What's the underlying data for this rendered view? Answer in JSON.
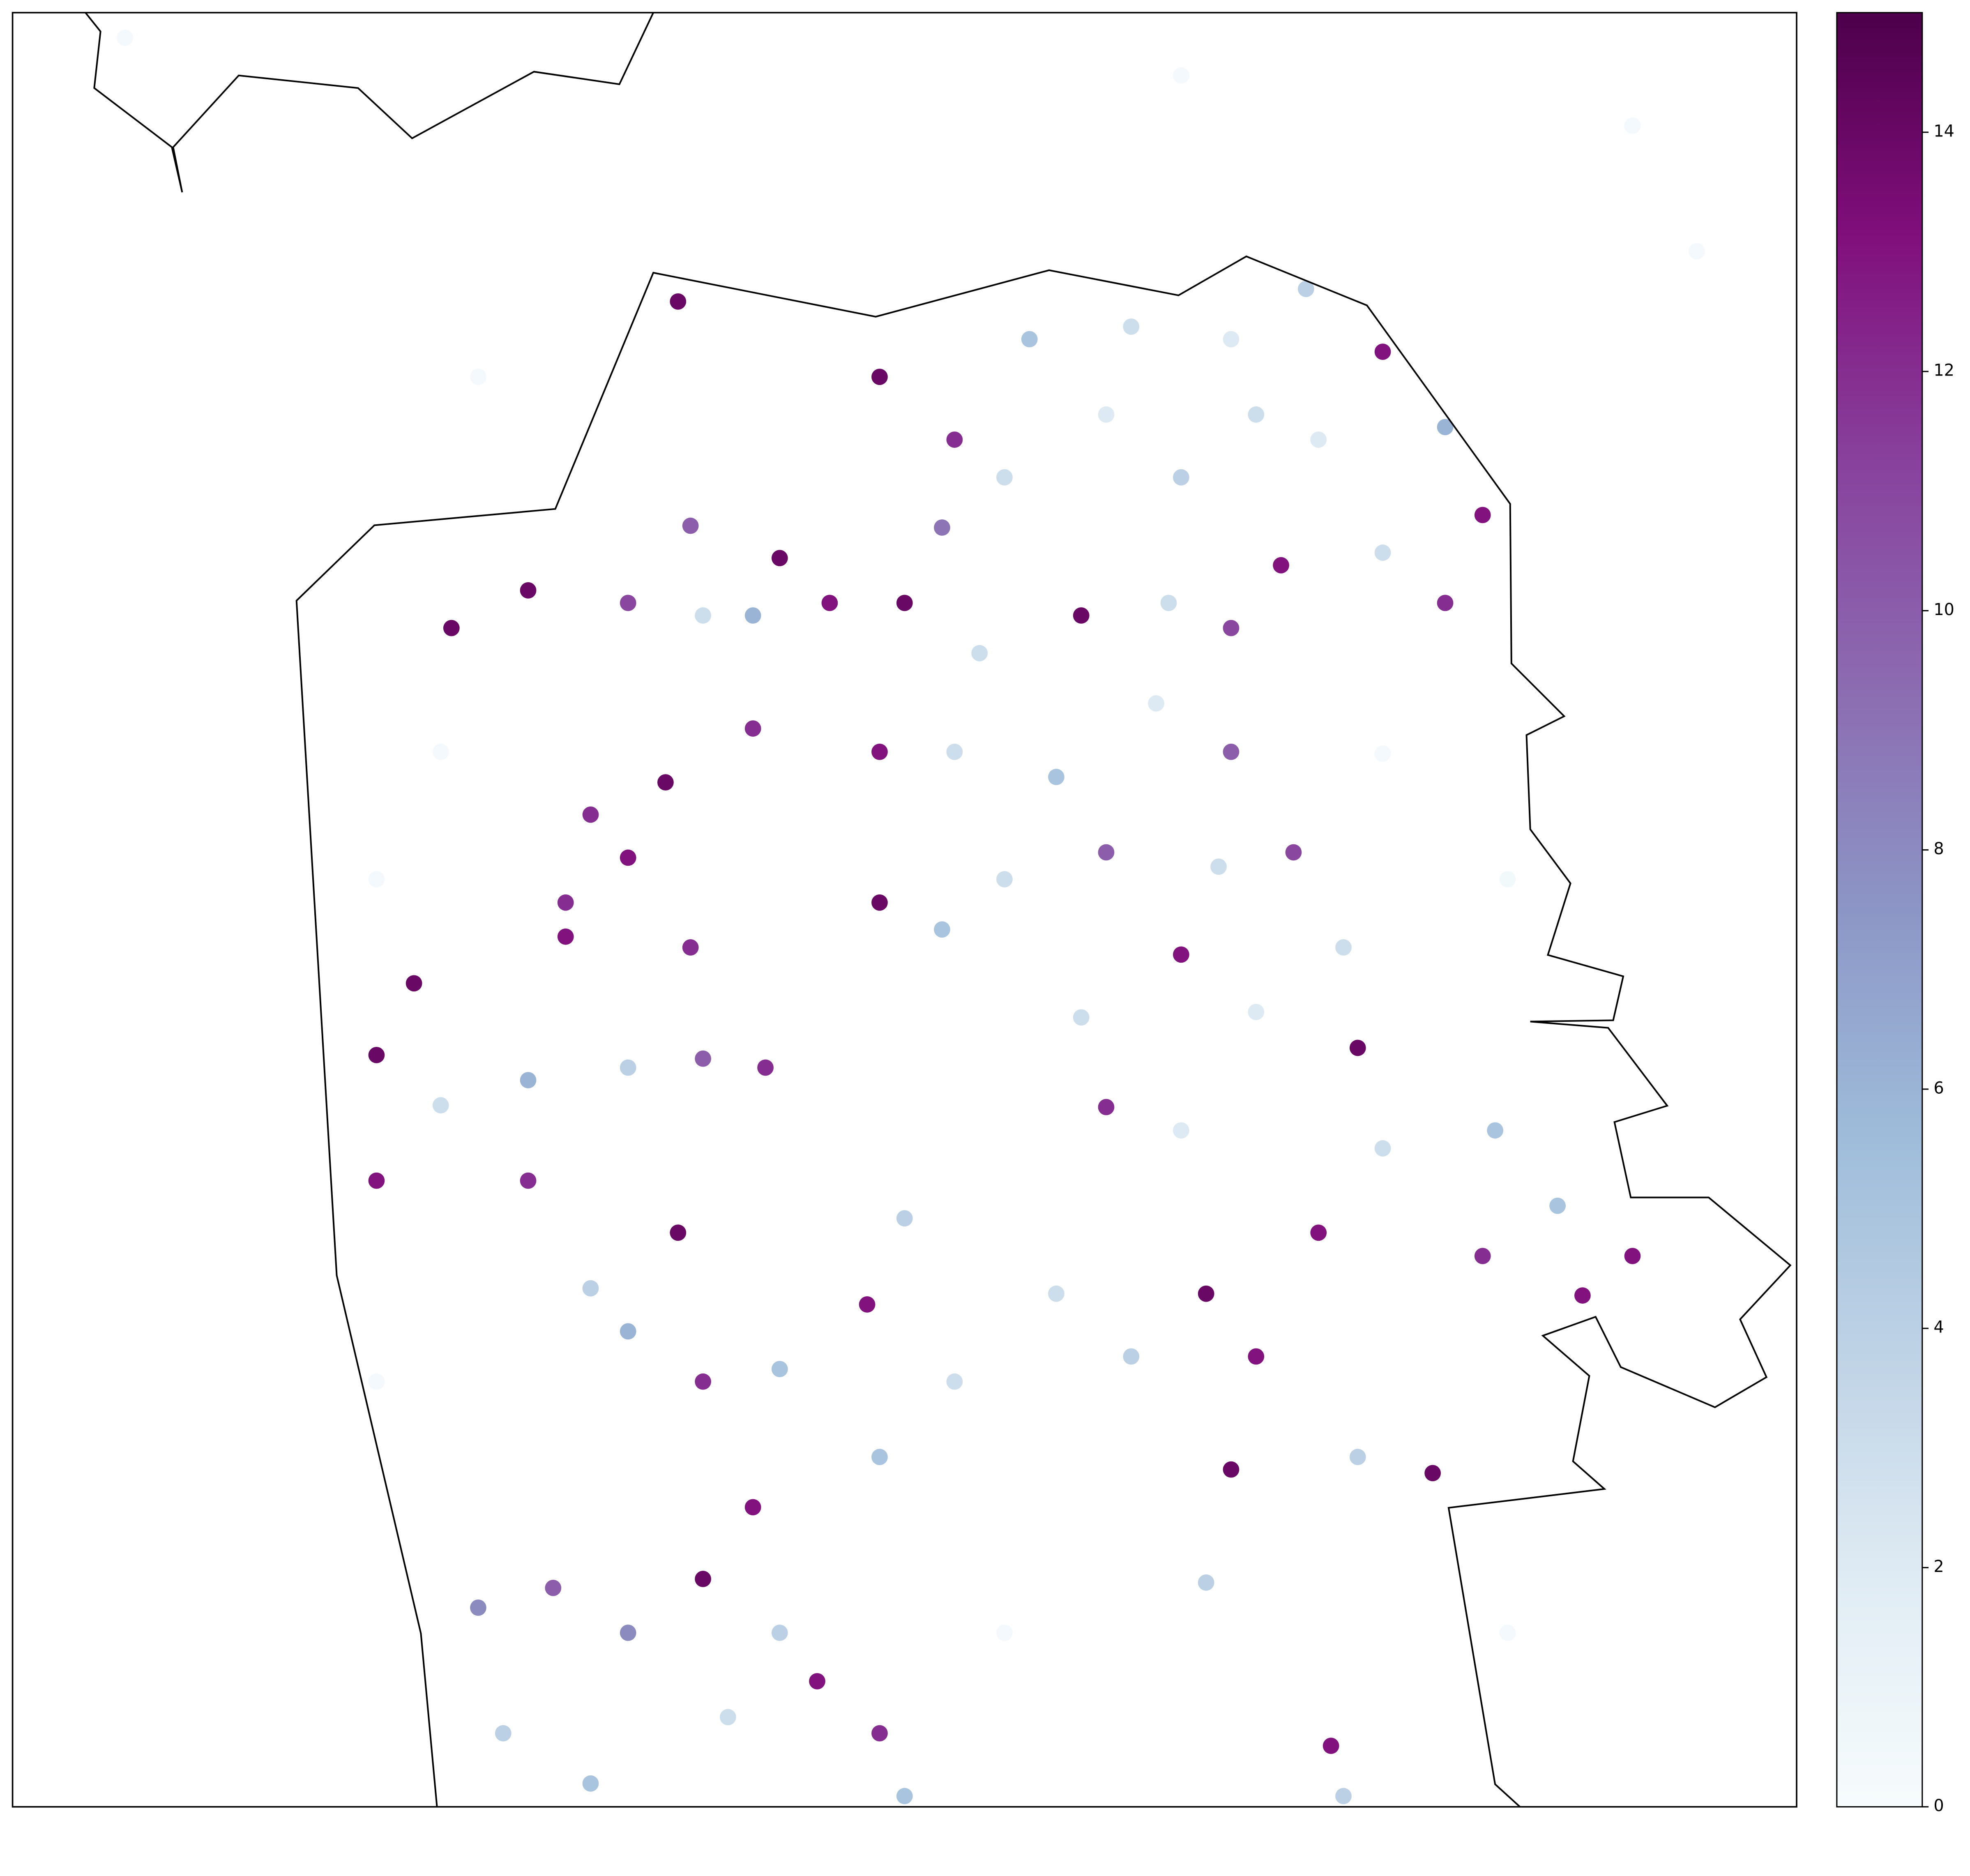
{
  "chart_data": {
    "type": "scatter",
    "xlim": [
      0,
      100
    ],
    "ylim": [
      0,
      100
    ],
    "x": [
      48.6,
      52.8,
      57.0,
      62.7,
      68.3,
      72.5,
      76.8,
      80.3,
      82.4,
      80.3,
      76.8,
      73.2,
      69.7,
      65.5,
      61.3,
      55.6,
      52.1,
      50.0,
      54.2,
      59.9,
      64.8,
      68.3,
      71.1,
      64.1,
      68.3,
      48.6,
      52.8,
      58.5,
      55.6,
      52.1,
      48.6,
      61.3,
      67.6,
      71.8,
      74.6,
      69.7,
      65.5,
      59.9,
      75.4,
      65.5,
      61.3,
      83.1,
      76.8,
      73.2,
      82.4,
      86.6,
      90.8,
      88.0,
      58.5,
      62.7,
      66.9,
      69.7,
      75.4,
      79.6,
      68.3,
      66.9,
      50.0,
      47.9,
      52.8,
      48.6,
      43.0,
      38.7,
      34.5,
      32.4,
      37.3,
      41.5,
      38.7,
      43.0,
      40.1,
      34.5,
      30.3,
      26.1,
      27.5,
      32.4,
      48.6,
      50.0,
      45.1,
      20.4,
      24.0,
      28.9,
      34.5,
      38.7,
      20.4,
      28.9,
      22.5,
      31.0,
      34.5,
      32.4,
      36.6,
      31.0,
      38.0,
      42.2,
      28.9,
      34.5,
      38.7,
      41.5,
      43.0,
      38.0,
      41.5,
      45.8,
      24.6,
      37.3,
      73.9,
      74.6,
      24.0,
      20.4,
      55.6,
      83.8,
      90.8,
      94.4,
      65.5,
      76.8,
      20.4,
      83.8,
      26.1,
      6.3
    ],
    "y": [
      79.7,
      76.2,
      81.8,
      82.5,
      81.8,
      84.6,
      81.1,
      76.9,
      72.0,
      67.1,
      69.9,
      76.2,
      77.6,
      74.1,
      77.6,
      74.1,
      71.3,
      67.1,
      64.3,
      66.4,
      67.1,
      65.7,
      69.2,
      61.5,
      58.8,
      58.8,
      58.8,
      57.4,
      51.7,
      48.9,
      50.4,
      53.2,
      52.4,
      53.2,
      47.9,
      44.3,
      47.5,
      44.0,
      42.3,
      37.7,
      39.0,
      37.7,
      36.7,
      32.0,
      30.7,
      33.5,
      30.7,
      28.5,
      28.6,
      25.1,
      28.6,
      25.1,
      19.5,
      18.6,
      18.8,
      12.5,
      32.8,
      28.0,
      23.7,
      19.5,
      24.4,
      23.7,
      26.5,
      28.9,
      32.0,
      16.7,
      12.7,
      9.7,
      5.0,
      9.7,
      12.2,
      11.1,
      4.1,
      1.3,
      4.1,
      0.6,
      7.0,
      41.9,
      39.1,
      40.5,
      41.2,
      41.7,
      34.9,
      34.9,
      45.9,
      48.5,
      52.9,
      55.3,
      57.1,
      50.4,
      47.9,
      41.2,
      67.8,
      67.1,
      66.4,
      66.4,
      69.6,
      71.4,
      60.1,
      67.1,
      65.7,
      83.9,
      3.4,
      0.6,
      58.8,
      51.7,
      9.7,
      51.7,
      93.7,
      86.7,
      96.5,
      58.7,
      23.7,
      9.7,
      79.7,
      98.6
    ],
    "values": [
      14,
      12,
      5,
      3,
      2,
      4,
      13,
      6,
      13,
      12,
      3,
      2,
      3,
      4,
      2,
      3,
      9,
      14,
      3,
      14,
      3,
      11,
      13,
      2,
      10,
      13,
      3,
      5,
      3,
      5,
      14,
      10,
      3,
      11,
      3,
      2,
      13,
      3,
      14,
      2,
      12,
      5,
      3,
      13,
      12,
      5,
      13,
      13,
      3,
      4,
      14,
      13,
      4,
      14,
      14,
      4,
      4,
      13,
      3,
      5,
      5,
      12,
      6,
      4,
      14,
      13,
      14,
      4,
      3,
      8,
      10,
      8,
      4,
      5,
      12,
      5,
      13,
      14,
      3,
      6,
      4,
      10,
      13,
      12,
      14,
      13,
      13,
      12,
      14,
      12,
      12,
      12,
      14,
      11,
      3,
      6,
      14,
      10,
      12,
      13,
      14,
      14,
      13,
      4,
      0.3,
      0.3,
      0.3,
      0.4,
      0.3,
      0.3,
      0.3,
      0.3,
      0.3,
      0.3,
      0.3,
      0.3
    ],
    "colormap": [
      "#f7fcfd",
      "#e0ecf4",
      "#bfd3e6",
      "#9ebcda",
      "#8c96c6",
      "#8c6bb1",
      "#88419d",
      "#810f7c",
      "#4d004b"
    ],
    "clim": [
      0,
      15
    ],
    "cticks": [
      0,
      2,
      4,
      6,
      8,
      10,
      12,
      14
    ]
  }
}
